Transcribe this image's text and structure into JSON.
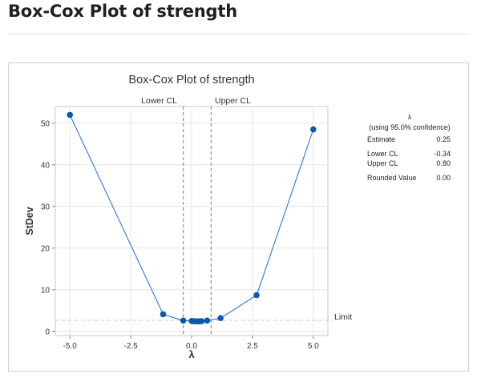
{
  "page": {
    "title": "Box-Cox Plot of strength"
  },
  "chart_data": {
    "type": "line",
    "title": "Box-Cox Plot of strength",
    "xlabel": "λ",
    "ylabel": "StDev",
    "xlim": [
      -5.6,
      5.6
    ],
    "ylim": [
      -1,
      54
    ],
    "xticks": [
      -5.0,
      -2.5,
      0.0,
      2.5,
      5.0
    ],
    "xtick_labels": [
      "-5.0",
      "-2.5",
      "0.0",
      "2.5",
      "5.0"
    ],
    "yticks": [
      0,
      10,
      20,
      30,
      40,
      50
    ],
    "ytick_labels": [
      "0",
      "10",
      "20",
      "30",
      "40",
      "50"
    ],
    "grid": true,
    "series": [
      {
        "x": [
          -5.0,
          -1.17,
          -0.34,
          0.0,
          0.08,
          0.16,
          0.25,
          0.33,
          0.41,
          0.64,
          1.19,
          2.67,
          5.0
        ],
        "y": [
          52.0,
          4.1,
          2.6,
          2.5,
          2.45,
          2.42,
          2.4,
          2.42,
          2.45,
          2.6,
          3.2,
          8.7,
          48.5
        ]
      }
    ],
    "lower_cl_x": -0.34,
    "upper_cl_x": 0.8,
    "limit_y": 2.65,
    "annotations": {
      "lower_cl": "Lower CL",
      "upper_cl": "Upper CL",
      "limit": "Limit"
    },
    "stats": {
      "header": "λ",
      "subheader": "(using 95.0% confidence)",
      "rows": [
        {
          "label": "Estimate",
          "value": "0.25"
        },
        {
          "label": "Lower CL",
          "value": "-0.34"
        },
        {
          "label": "Upper CL",
          "value": "0.80"
        },
        {
          "label": "Rounded Value",
          "value": "0.00"
        }
      ]
    },
    "colors": {
      "line": "#2f7ad8",
      "marker": "#0b5aa8",
      "cl_line": "#7a7a7a",
      "limit_line": "#c8c8c8",
      "grid": "#e6e6e6"
    }
  }
}
